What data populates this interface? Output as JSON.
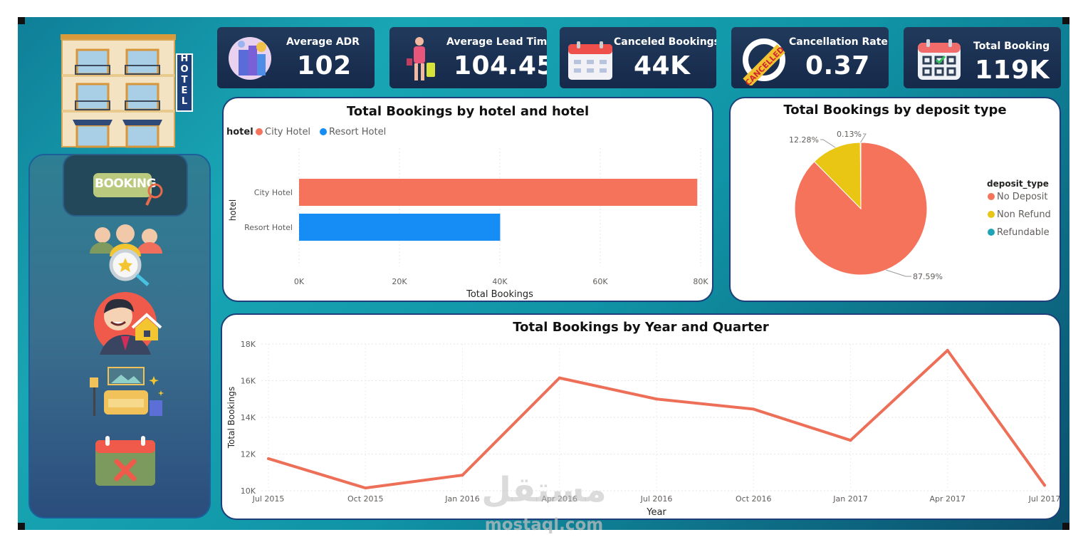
{
  "brand": {
    "hotel_sign": "HOTEL",
    "booking_label": "BOOKING"
  },
  "kpis": [
    {
      "label": "Average ADR",
      "value": "102"
    },
    {
      "label": "Average Lead Time",
      "value": "104.45"
    },
    {
      "label": "Canceled Bookings",
      "value": "44K"
    },
    {
      "label": "Cancellation Rate",
      "value": "0.37"
    },
    {
      "label": "Total Booking",
      "value": "119K"
    }
  ],
  "cancelled_stamp": "CANCELLED",
  "chart_data": [
    {
      "type": "bar",
      "orientation": "horizontal",
      "title": "Total Bookings by hotel and hotel",
      "legend_title": "hotel",
      "categories": [
        "City Hotel",
        "Resort Hotel"
      ],
      "values": [
        79330,
        40060
      ],
      "colors": [
        "#f5735a",
        "#168df5"
      ],
      "xlabel": "Total Bookings",
      "ylabel": "hotel",
      "xlim": [
        0,
        80000
      ],
      "xticks": [
        0,
        20000,
        40000,
        60000,
        80000
      ],
      "xtick_labels": [
        "0K",
        "20K",
        "40K",
        "60K",
        "80K"
      ]
    },
    {
      "type": "pie",
      "title": "Total Bookings by deposit type",
      "legend_title": "deposit_type",
      "labels": [
        "No Deposit",
        "Non Refund",
        "Refundable"
      ],
      "values": [
        87.59,
        12.28,
        0.13
      ],
      "data_labels": [
        "87.59%",
        "12.28%",
        "0.13%"
      ],
      "colors": [
        "#f5735a",
        "#e9c614",
        "#1ea4b5"
      ]
    },
    {
      "type": "line",
      "title": "Total Bookings by Year and Quarter",
      "x": [
        "Jul 2015",
        "Oct 2015",
        "Jan 2016",
        "Apr 2016",
        "Jul 2016",
        "Oct 2016",
        "Jan 2017",
        "Apr 2017",
        "Jul 2017"
      ],
      "series": [
        {
          "name": "Total Bookings",
          "values": [
            11750,
            10150,
            10850,
            16150,
            15000,
            14450,
            12750,
            17650,
            10300
          ],
          "color": "#ee6f58"
        }
      ],
      "xlabel": "Year",
      "ylabel": "Total Bookings",
      "ylim": [
        10000,
        18000
      ],
      "yticks": [
        10000,
        12000,
        14000,
        16000,
        18000
      ],
      "ytick_labels": [
        "10K",
        "12K",
        "14K",
        "16K",
        "18K"
      ]
    }
  ],
  "watermark": {
    "arabic": "مستقل",
    "latin": "mostaql.com"
  }
}
